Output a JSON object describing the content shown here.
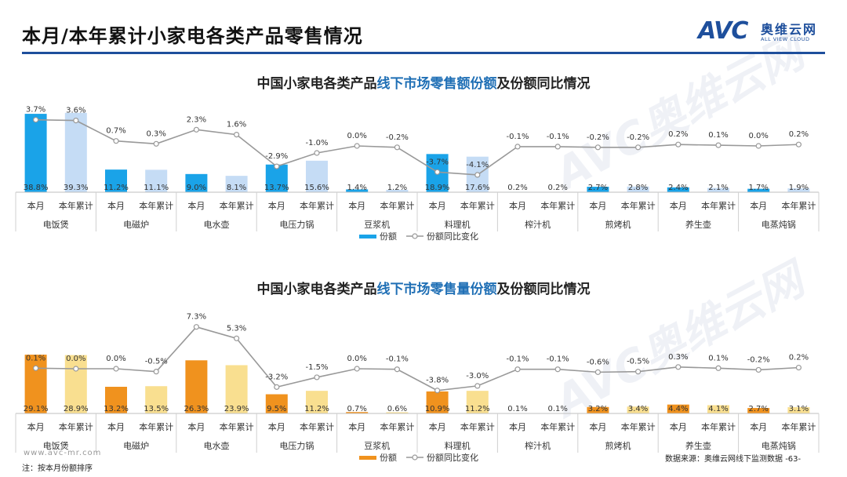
{
  "page": {
    "title": "本月/本年累计小家电各类产品零售情况",
    "site": "www.avc-mr.com",
    "note": "注：按本月份额排序",
    "source": "数据来源：奥维云网线下监测数据",
    "page_number": "-63-"
  },
  "logo": {
    "mark": "AVC",
    "cn": "奥维云网",
    "en": "ALL VIEW CLOUD"
  },
  "watermark": {
    "mark": "AVC",
    "cn": "奥维云网",
    "en": "ALL VIEW CLOUD"
  },
  "colors": {
    "brand": "#1e4f9c",
    "highlight": "#1f6fb5",
    "bar_month_top": "#1aa3e8",
    "bar_ytd_top": "#c5dcf5",
    "bar_month_bottom": "#f0921e",
    "bar_ytd_bottom": "#f9df90",
    "line": "#999999"
  },
  "chart_data": [
    {
      "type": "bar",
      "title_parts": [
        "中国小家电各类产品",
        "线下市场零售额份额",
        "及份额同比情况"
      ],
      "subcategories": [
        "本月",
        "本年累计"
      ],
      "groups": [
        "电饭煲",
        "电磁炉",
        "电水壶",
        "电压力锅",
        "豆浆机",
        "料理机",
        "榨汁机",
        "煎烤机",
        "养生壶",
        "电蒸炖锅"
      ],
      "share_values": [
        38.8,
        39.3,
        11.2,
        11.1,
        9.0,
        8.1,
        13.7,
        15.6,
        1.4,
        1.2,
        18.9,
        17.6,
        0.2,
        0.2,
        2.7,
        2.8,
        2.4,
        2.1,
        1.7,
        1.9
      ],
      "change_values": [
        3.7,
        3.6,
        0.7,
        0.3,
        2.3,
        1.6,
        -2.9,
        -1.0,
        0.0,
        -0.2,
        -3.7,
        -4.1,
        -0.1,
        -0.1,
        -0.2,
        -0.2,
        0.2,
        0.1,
        0.0,
        0.2
      ],
      "bar_labels": [
        "38.8%",
        "39.3%",
        "11.2%",
        "11.1%",
        "9.0%",
        "8.1%",
        "13.7%",
        "15.6%",
        "1.4%",
        "1.2%",
        "18.9%",
        "17.6%",
        "0.2%",
        "0.2%",
        "2.7%",
        "2.8%",
        "2.4%",
        "2.1%",
        "1.7%",
        "1.9%"
      ],
      "line_labels": [
        "3.7%",
        "3.6%",
        "0.7%",
        "0.3%",
        "2.3%",
        "1.6%",
        "-2.9%",
        "-1.0%",
        "0.0%",
        "-0.2%",
        "-3.7%",
        "-4.1%",
        "-0.1%",
        "-0.1%",
        "-0.2%",
        "-0.2%",
        "0.2%",
        "0.1%",
        "0.0%",
        "0.2%"
      ],
      "legend": [
        "份额",
        "份额同比变化"
      ],
      "legend_position": "bottom"
    },
    {
      "type": "bar",
      "title_parts": [
        "中国小家电各类产品",
        "线下市场零售量份额",
        "及份额同比情况"
      ],
      "subcategories": [
        "本月",
        "本年累计"
      ],
      "groups": [
        "电饭煲",
        "电磁炉",
        "电水壶",
        "电压力锅",
        "豆浆机",
        "料理机",
        "榨汁机",
        "煎烤机",
        "养生壶",
        "电蒸炖锅"
      ],
      "share_values": [
        29.1,
        28.9,
        13.2,
        13.5,
        26.3,
        23.9,
        9.5,
        11.2,
        0.7,
        0.6,
        10.9,
        11.2,
        0.1,
        0.1,
        3.2,
        3.4,
        4.4,
        4.1,
        2.7,
        3.1
      ],
      "change_values": [
        0.1,
        0.0,
        0.0,
        -0.5,
        7.3,
        5.3,
        -3.2,
        -1.5,
        0.0,
        -0.1,
        -3.8,
        -3.0,
        -0.1,
        -0.1,
        -0.6,
        -0.5,
        0.3,
        0.1,
        -0.2,
        0.2
      ],
      "bar_labels": [
        "29.1%",
        "28.9%",
        "13.2%",
        "13.5%",
        "26.3%",
        "23.9%",
        "9.5%",
        "11.2%",
        "0.7%",
        "0.6%",
        "10.9%",
        "11.2%",
        "0.1%",
        "0.1%",
        "3.2%",
        "3.4%",
        "4.4%",
        "4.1%",
        "2.7%",
        "3.1%"
      ],
      "line_labels": [
        "0.1%",
        "0.0%",
        "0.0%",
        "-0.5%",
        "7.3%",
        "5.3%",
        "-3.2%",
        "-1.5%",
        "0.0%",
        "-0.1%",
        "-3.8%",
        "-3.0%",
        "-0.1%",
        "-0.1%",
        "-0.6%",
        "-0.5%",
        "0.3%",
        "0.1%",
        "-0.2%",
        "0.2%"
      ],
      "legend": [
        "份额",
        "份额同比变化"
      ],
      "legend_position": "bottom"
    }
  ]
}
